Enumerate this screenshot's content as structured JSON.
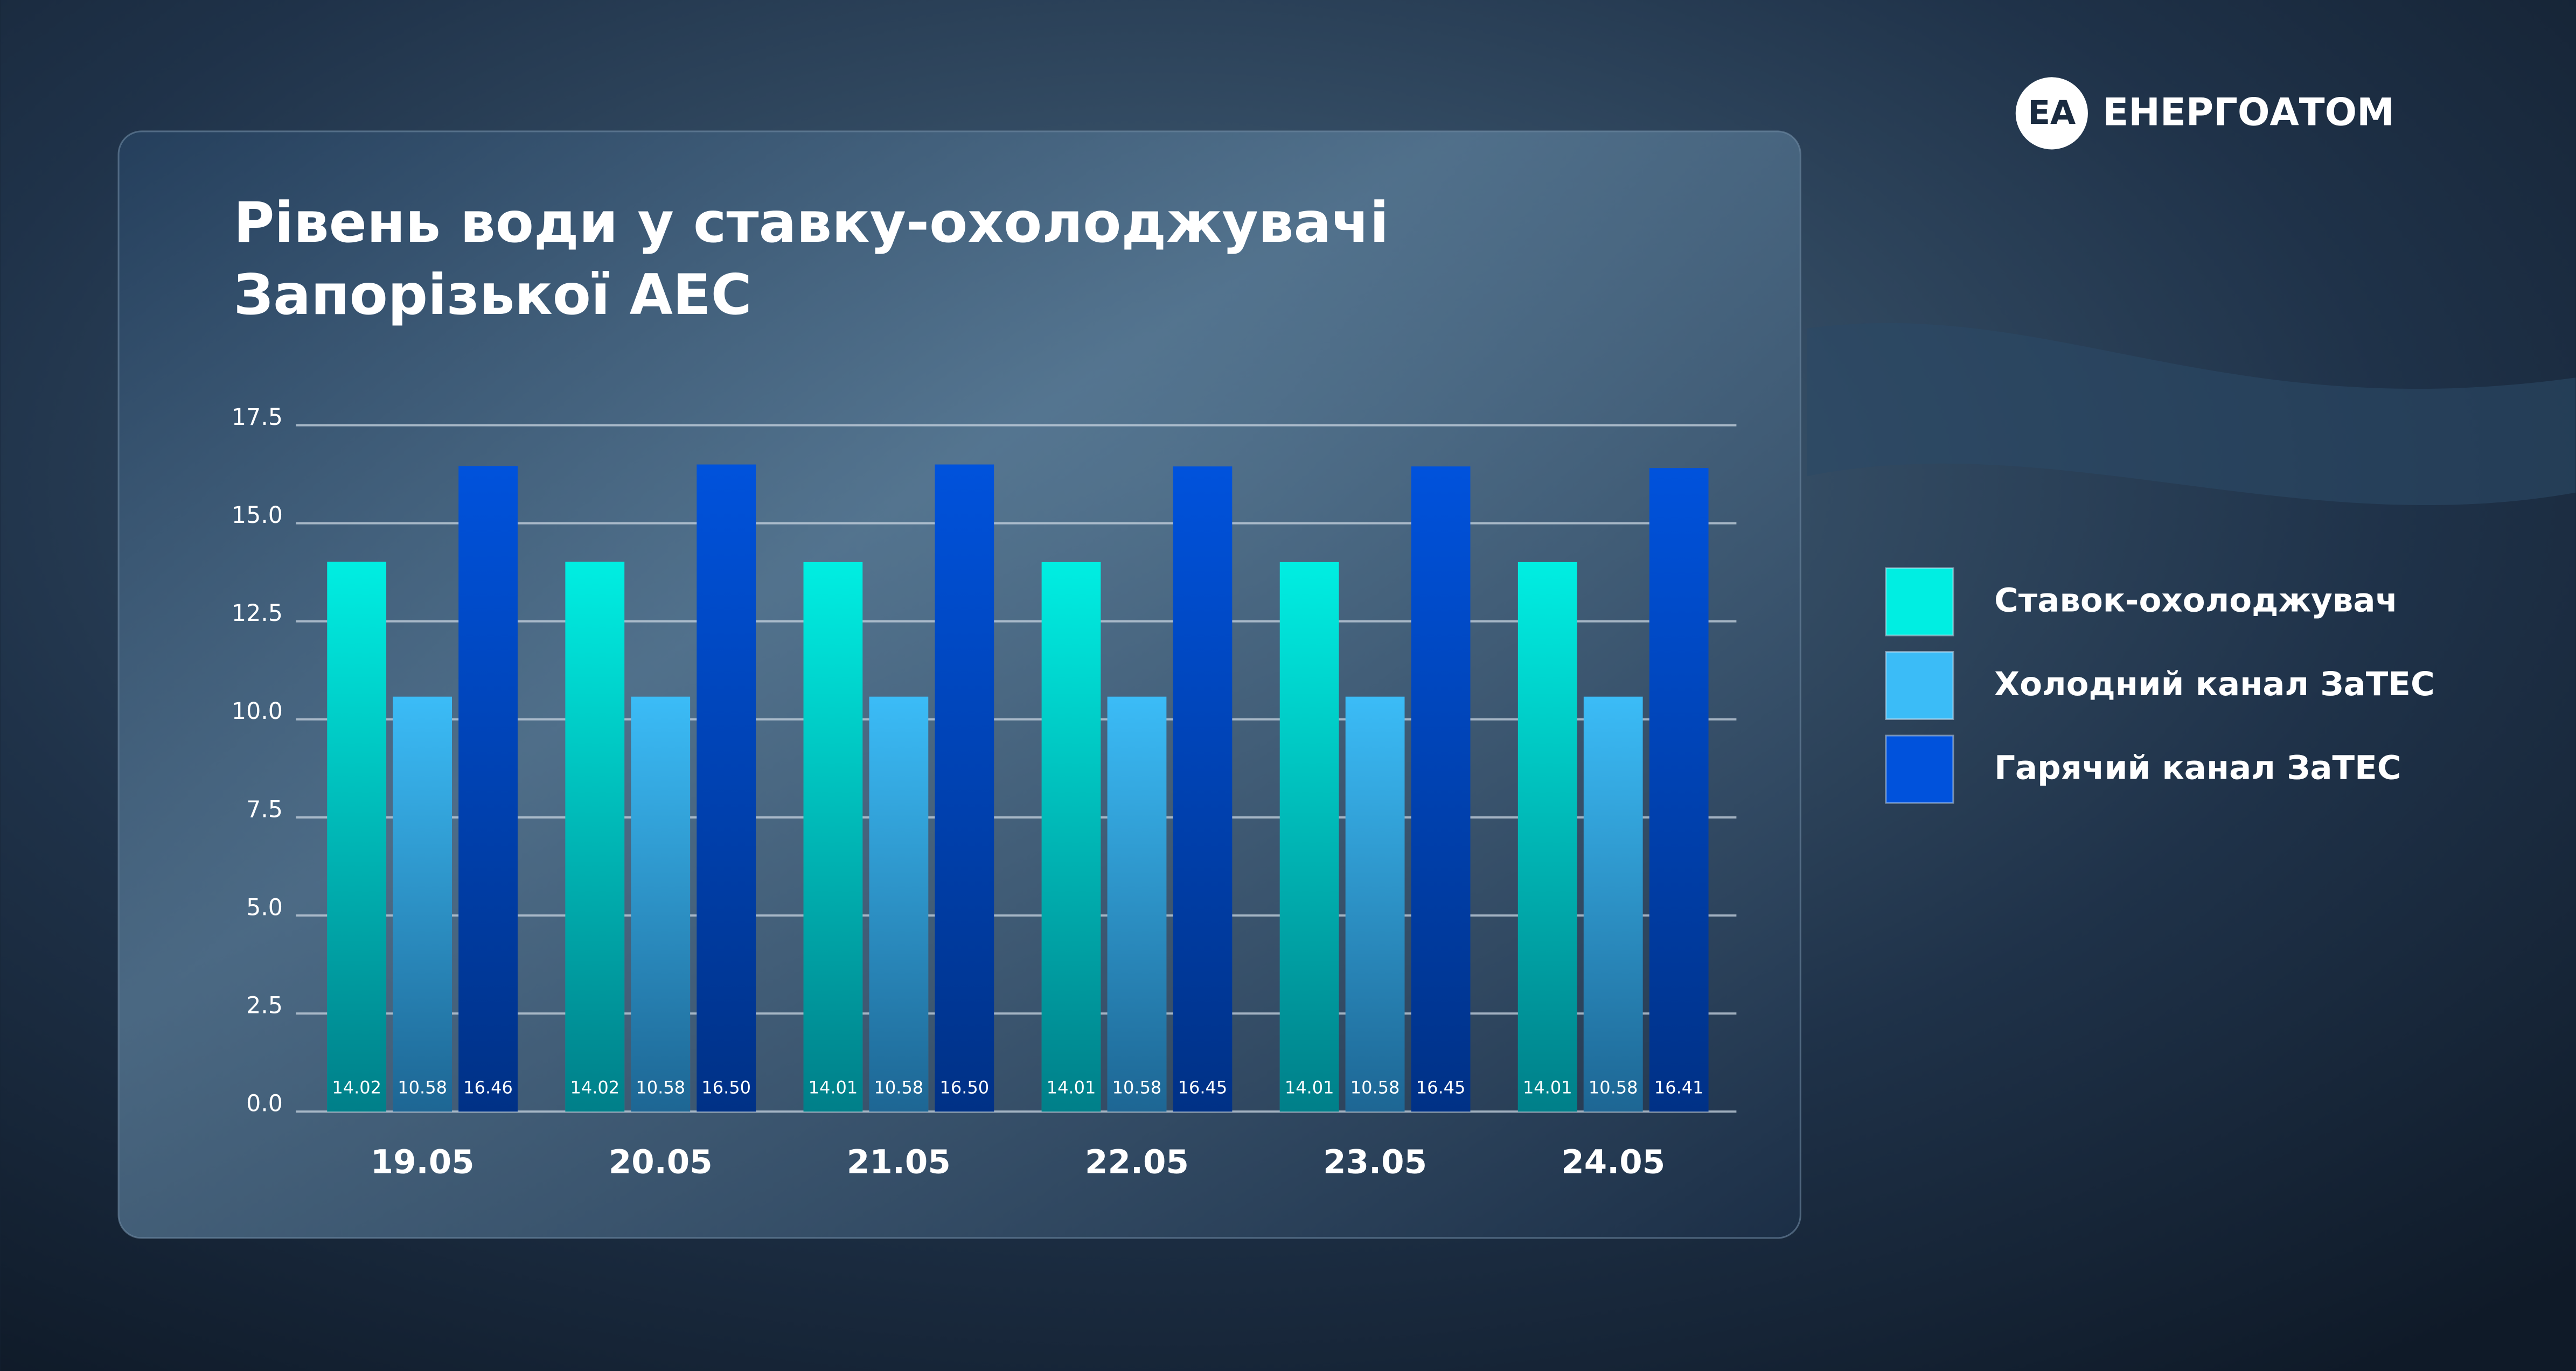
{
  "logo": "ЕНЕРГОАТОМ",
  "chart_data": {
    "type": "bar",
    "title": [
      "Рівень води у ставку-охолоджувачі",
      "Запорізької АЕС"
    ],
    "categories": [
      "19.05",
      "20.05",
      "21.05",
      "22.05",
      "23.05",
      "24.05"
    ],
    "series": [
      {
        "name": "Ставок-охолоджувач",
        "color": "#00eee2",
        "values": [
          14.02,
          14.02,
          14.01,
          14.01,
          14.01,
          14.01
        ],
        "value_labels": [
          "14.02",
          "14.02",
          "14.01",
          "14.01",
          "14.01",
          "14.01"
        ]
      },
      {
        "name": "Холодний канал ЗаТЕС",
        "color": "#3bbcf7",
        "values": [
          10.58,
          10.58,
          10.58,
          10.58,
          10.58,
          10.58
        ],
        "value_labels": [
          "10.58",
          "10.58",
          "10.58",
          "10.58",
          "10.58",
          "10.58"
        ]
      },
      {
        "name": "Гарячий канал ЗаТЕС",
        "color": "#0052dc",
        "values": [
          16.46,
          16.5,
          16.5,
          16.45,
          16.45,
          16.41
        ],
        "value_labels": [
          "16.46",
          "16.50",
          "16.50",
          "16.45",
          "16.45",
          "16.41"
        ]
      }
    ],
    "ylim": [
      0,
      17.5
    ],
    "yticks": [
      {
        "value": 0,
        "label": "0.0"
      },
      2.5,
      {
        "value": 5,
        "label": "5.0"
      },
      7.5,
      {
        "value": 10,
        "label": "10.0"
      },
      12.5,
      {
        "value": 15,
        "label": "15.0"
      },
      17.5
    ],
    "grid": true
  }
}
